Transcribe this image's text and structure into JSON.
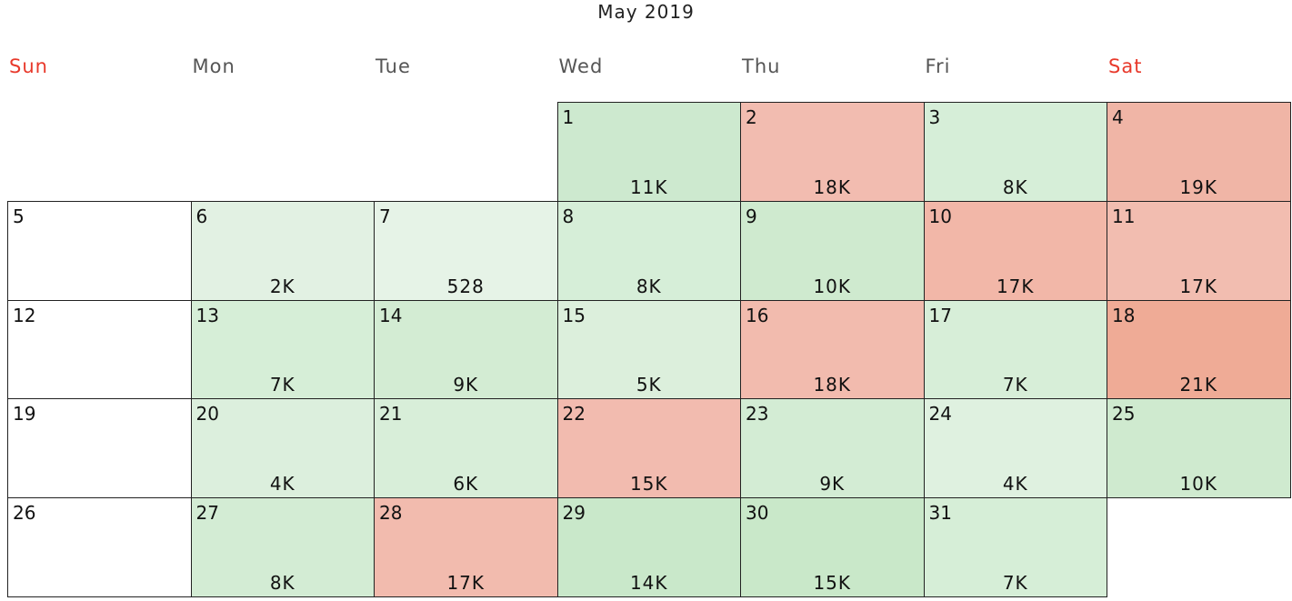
{
  "title": "May 2019",
  "weekdays": [
    {
      "label": "Sun",
      "weekend": true
    },
    {
      "label": "Mon",
      "weekend": false
    },
    {
      "label": "Tue",
      "weekend": false
    },
    {
      "label": "Wed",
      "weekend": false
    },
    {
      "label": "Thu",
      "weekend": false
    },
    {
      "label": "Fri",
      "weekend": false
    },
    {
      "label": "Sat",
      "weekend": true
    }
  ],
  "colors": {
    "weekend_header": "#e8392b",
    "low": "#e6f3e6",
    "mid": "#c9e8c9",
    "high": "#efa995"
  },
  "chart_data": {
    "type": "heatmap",
    "title": "May 2019",
    "year": 2019,
    "month": 5,
    "first_weekday": 3,
    "days": [
      {
        "day": 1,
        "label": "11K",
        "value": 11000,
        "color": "#cde9cf"
      },
      {
        "day": 2,
        "label": "18K",
        "value": 18000,
        "color": "#f2bcb0"
      },
      {
        "day": 3,
        "label": "8K",
        "value": 8000,
        "color": "#d6eed8"
      },
      {
        "day": 4,
        "label": "19K",
        "value": 19000,
        "color": "#f0b5a6"
      },
      {
        "day": 5,
        "label": "",
        "value": null,
        "color": "#ffffff"
      },
      {
        "day": 6,
        "label": "2K",
        "value": 2000,
        "color": "#e2f1e3"
      },
      {
        "day": 7,
        "label": "528",
        "value": 528,
        "color": "#e6f3e7"
      },
      {
        "day": 8,
        "label": "8K",
        "value": 8000,
        "color": "#d6eed8"
      },
      {
        "day": 9,
        "label": "10K",
        "value": 10000,
        "color": "#cfeacf"
      },
      {
        "day": 10,
        "label": "17K",
        "value": 17000,
        "color": "#f2b7a8"
      },
      {
        "day": 11,
        "label": "17K",
        "value": 17000,
        "color": "#f2bdb0"
      },
      {
        "day": 12,
        "label": "",
        "value": null,
        "color": "#ffffff"
      },
      {
        "day": 13,
        "label": "7K",
        "value": 7000,
        "color": "#d6eed7"
      },
      {
        "day": 14,
        "label": "9K",
        "value": 9000,
        "color": "#d3ecd3"
      },
      {
        "day": 15,
        "label": "5K",
        "value": 5000,
        "color": "#dcefdc"
      },
      {
        "day": 16,
        "label": "18K",
        "value": 18000,
        "color": "#f2bbae"
      },
      {
        "day": 17,
        "label": "7K",
        "value": 7000,
        "color": "#d7eed8"
      },
      {
        "day": 18,
        "label": "21K",
        "value": 21000,
        "color": "#efab96"
      },
      {
        "day": 19,
        "label": "",
        "value": null,
        "color": "#ffffff"
      },
      {
        "day": 20,
        "label": "4K",
        "value": 4000,
        "color": "#dcefdd"
      },
      {
        "day": 21,
        "label": "6K",
        "value": 6000,
        "color": "#d8eed9"
      },
      {
        "day": 22,
        "label": "15K",
        "value": 15000,
        "color": "#f2bbaf"
      },
      {
        "day": 23,
        "label": "9K",
        "value": 9000,
        "color": "#d3ecd4"
      },
      {
        "day": 24,
        "label": "4K",
        "value": 4000,
        "color": "#dff1e0"
      },
      {
        "day": 25,
        "label": "10K",
        "value": 10000,
        "color": "#cfeacf"
      },
      {
        "day": 26,
        "label": "",
        "value": null,
        "color": "#ffffff"
      },
      {
        "day": 27,
        "label": "8K",
        "value": 8000,
        "color": "#d3ecd4"
      },
      {
        "day": 28,
        "label": "17K",
        "value": 17000,
        "color": "#f2bbae"
      },
      {
        "day": 29,
        "label": "14K",
        "value": 14000,
        "color": "#c9e8ca"
      },
      {
        "day": 30,
        "label": "15K",
        "value": 15000,
        "color": "#c9e8c9"
      },
      {
        "day": 31,
        "label": "7K",
        "value": 7000,
        "color": "#d6eed7"
      }
    ]
  }
}
